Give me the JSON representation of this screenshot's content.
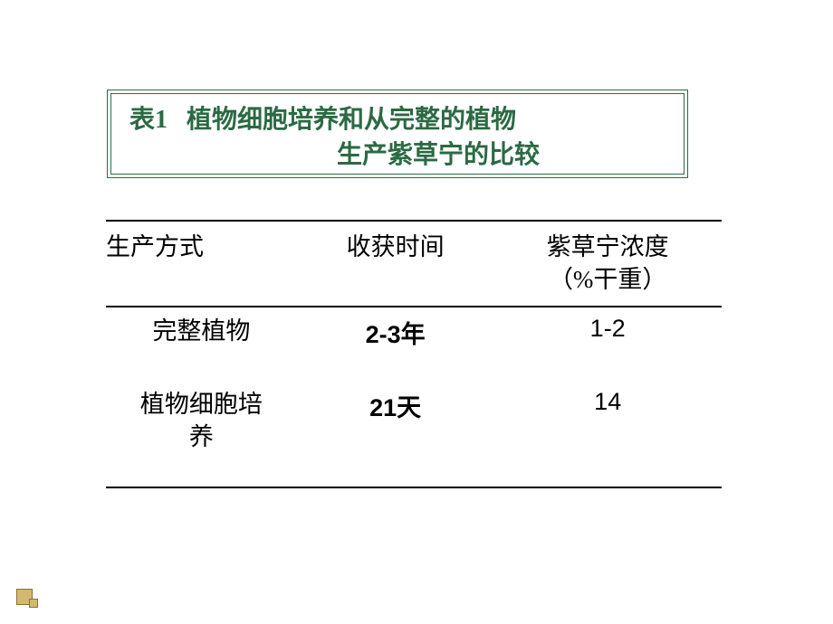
{
  "title": {
    "label": "表1",
    "line1": "植物细胞培养和从完整的植物",
    "line2": "生产紫草宁的比较",
    "border_color": "#2b6a43",
    "text_color": "#2b6a43",
    "fontsize": 28
  },
  "table": {
    "type": "table",
    "columns": [
      "生产方式",
      "收获时间",
      "紫草宁浓度（%干重）"
    ],
    "header_col3_line1": "紫草宁浓度",
    "header_col3_line2": "（%干重）",
    "rows": [
      {
        "method": "完整植物",
        "harvest": "2-3年",
        "concentration": "1-2"
      },
      {
        "method_line1": "植物细胞培",
        "method_line2": "养",
        "harvest": "21天",
        "concentration": "14"
      }
    ],
    "border_color": "#000000",
    "text_color": "#000000",
    "chinese_fontsize": 27,
    "col_widths_pct": [
      31,
      32,
      37
    ]
  },
  "background_color": "#ffffff",
  "corner_mark_color": "#d4b870"
}
